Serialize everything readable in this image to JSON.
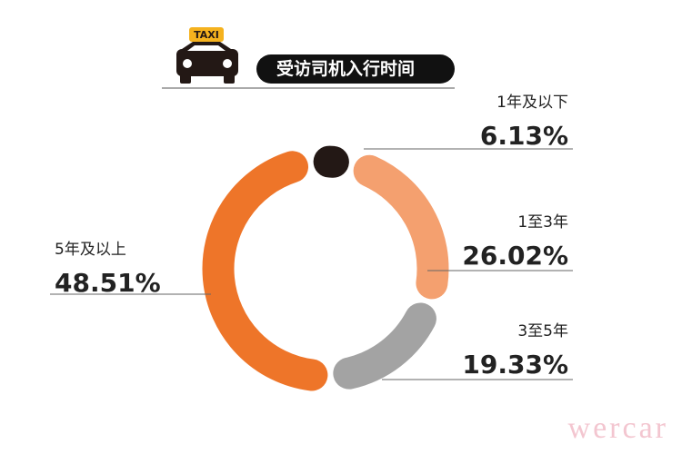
{
  "chart_data": {
    "type": "donut",
    "title": "受访司机入行时间",
    "badge": "TAXI",
    "watermark": "wercar",
    "categories": [
      "1年及以下",
      "1至3年",
      "3至5年",
      "5年及以上"
    ],
    "values": [
      6.13,
      26.02,
      19.33,
      48.51
    ],
    "value_labels": [
      "6.13%",
      "26.02%",
      "19.33%",
      "48.51%"
    ],
    "colors": [
      "#231815",
      "#f4a06f",
      "#a3a3a3",
      "#ee7529"
    ]
  }
}
